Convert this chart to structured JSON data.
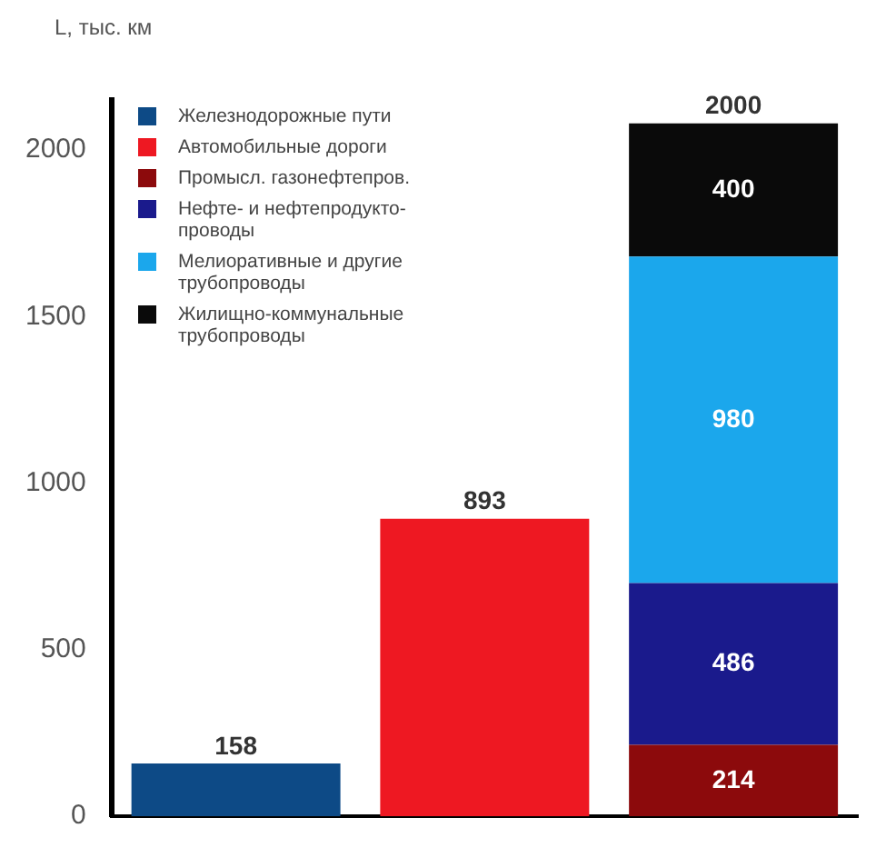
{
  "chart_data": {
    "type": "bar",
    "ylabel": "L, тыс. км",
    "categories": [
      null,
      null,
      null
    ],
    "stacked": true,
    "ylim": [
      0,
      2150
    ],
    "yticks": [
      0,
      500,
      1000,
      1500,
      2000
    ],
    "grid": false,
    "legend": "top left",
    "data_labels": true,
    "annotations": [
      "2000"
    ],
    "series": [
      {
        "name": "Железнодорожные пути",
        "color": "#0d4a86",
        "values": [
          158,
          null,
          null
        ]
      },
      {
        "name": "Автомобильные дороги",
        "color": "#ee1822",
        "values": [
          null,
          893,
          null
        ]
      },
      {
        "name": "Промысл. газонефтепров.",
        "color": "#8c0a0c",
        "values": [
          null,
          null,
          214
        ]
      },
      {
        "name": "Нефте- и нефтепродукто-проводы",
        "color": "#1a1a8c",
        "values": [
          null,
          null,
          486
        ]
      },
      {
        "name": "Мелиоративные и другие трубопроводы",
        "color": "#1ba7ec",
        "values": [
          null,
          null,
          980
        ]
      },
      {
        "name": "Жилищно-коммунальные трубопроводы",
        "color": "#0a0a0a",
        "values": [
          null,
          null,
          400
        ]
      }
    ]
  }
}
